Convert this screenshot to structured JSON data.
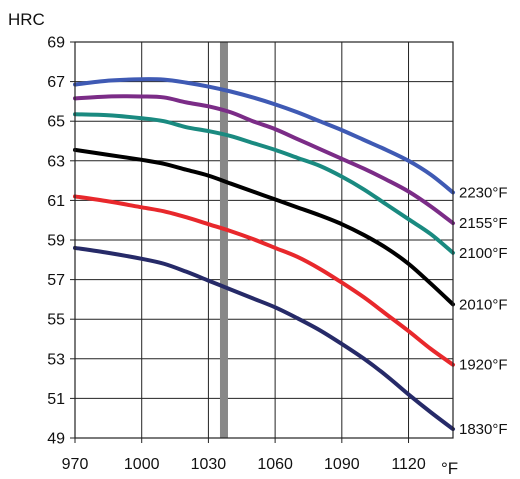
{
  "chart_data": {
    "type": "line",
    "title": "",
    "xlabel": "°F",
    "ylabel": "HRC",
    "xlim": [
      970,
      1140
    ],
    "ylim": [
      49,
      69
    ],
    "x_ticks": [
      970,
      1000,
      1030,
      1060,
      1090,
      1120
    ],
    "y_ticks": [
      49,
      51,
      53,
      55,
      57,
      59,
      61,
      63,
      65,
      67,
      69
    ],
    "grid": true,
    "marker": {
      "x": 1037,
      "color": "#888888"
    },
    "series": [
      {
        "name": "2230°F",
        "color": "#3f5ab4",
        "x": [
          970,
          985,
          1000,
          1010,
          1020,
          1030,
          1040,
          1050,
          1060,
          1070,
          1080,
          1090,
          1100,
          1110,
          1120,
          1130,
          1140
        ],
        "y": [
          66.85,
          67.05,
          67.12,
          67.1,
          66.95,
          66.75,
          66.5,
          66.2,
          65.85,
          65.45,
          65.0,
          64.55,
          64.05,
          63.55,
          63.0,
          62.3,
          61.4
        ]
      },
      {
        "name": "2155°F",
        "color": "#7b2c87",
        "x": [
          970,
          985,
          1000,
          1010,
          1020,
          1030,
          1040,
          1050,
          1060,
          1070,
          1080,
          1090,
          1100,
          1110,
          1120,
          1130,
          1140
        ],
        "y": [
          66.15,
          66.25,
          66.25,
          66.2,
          65.95,
          65.75,
          65.45,
          65.0,
          64.6,
          64.1,
          63.6,
          63.1,
          62.6,
          62.05,
          61.45,
          60.7,
          59.85
        ]
      },
      {
        "name": "2100°F",
        "color": "#1a8a80",
        "x": [
          970,
          985,
          1000,
          1010,
          1020,
          1030,
          1040,
          1050,
          1060,
          1070,
          1080,
          1090,
          1100,
          1110,
          1120,
          1130,
          1140
        ],
        "y": [
          65.35,
          65.3,
          65.15,
          65.0,
          64.7,
          64.5,
          64.25,
          63.9,
          63.55,
          63.15,
          62.75,
          62.2,
          61.55,
          60.8,
          60.05,
          59.3,
          58.35
        ]
      },
      {
        "name": "2010°F",
        "color": "#000000",
        "x": [
          970,
          985,
          1000,
          1010,
          1020,
          1030,
          1040,
          1050,
          1060,
          1070,
          1080,
          1090,
          1100,
          1110,
          1120,
          1130,
          1140
        ],
        "y": [
          63.55,
          63.3,
          63.05,
          62.85,
          62.55,
          62.25,
          61.85,
          61.45,
          61.05,
          60.65,
          60.25,
          59.8,
          59.25,
          58.6,
          57.8,
          56.8,
          55.75
        ]
      },
      {
        "name": "1920°F",
        "color": "#e8282c",
        "x": [
          970,
          985,
          1000,
          1010,
          1020,
          1030,
          1040,
          1050,
          1060,
          1070,
          1080,
          1090,
          1100,
          1110,
          1120,
          1130,
          1140
        ],
        "y": [
          61.2,
          60.95,
          60.65,
          60.45,
          60.15,
          59.8,
          59.45,
          59.05,
          58.6,
          58.15,
          57.55,
          56.85,
          56.1,
          55.25,
          54.4,
          53.5,
          52.7
        ]
      },
      {
        "name": "1830°F",
        "color": "#262a68",
        "x": [
          970,
          985,
          1000,
          1010,
          1020,
          1030,
          1040,
          1050,
          1060,
          1070,
          1080,
          1090,
          1100,
          1110,
          1120,
          1130,
          1140
        ],
        "y": [
          58.6,
          58.35,
          58.05,
          57.8,
          57.4,
          56.95,
          56.5,
          56.05,
          55.6,
          55.05,
          54.45,
          53.75,
          53.0,
          52.15,
          51.2,
          50.3,
          49.45
        ]
      }
    ]
  }
}
